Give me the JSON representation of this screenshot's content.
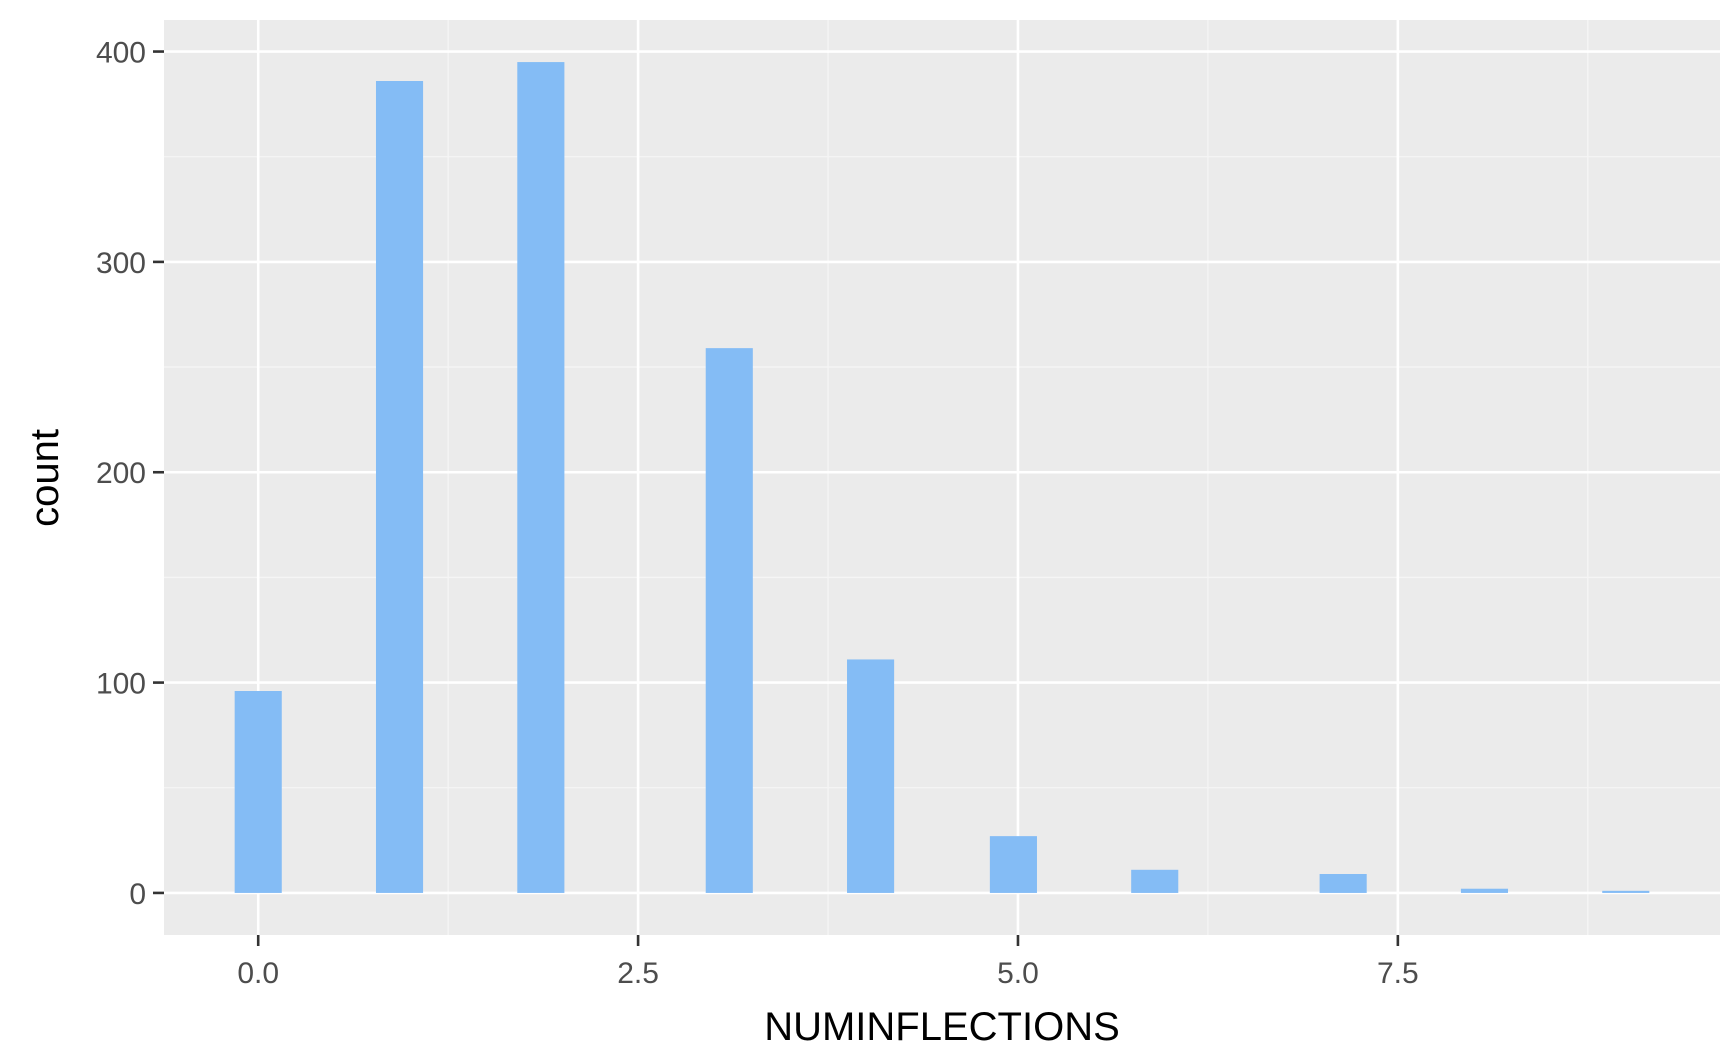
{
  "chart_data": {
    "type": "bar",
    "xlabel": "NUMINFLECTIONS",
    "ylabel": "count",
    "xlim": [
      -0.62,
      9.62
    ],
    "ylim": [
      -20,
      415
    ],
    "x_ticks": [
      0.0,
      2.5,
      5.0,
      7.5
    ],
    "x_tick_labels": [
      "0.0",
      "2.5",
      "5.0",
      "7.5"
    ],
    "y_ticks": [
      0,
      100,
      200,
      300,
      400
    ],
    "y_tick_labels": [
      "0",
      "100",
      "200",
      "300",
      "400"
    ],
    "bin_width": 0.31,
    "grid": true,
    "legend": "none",
    "x": [
      0,
      0.93,
      1.86,
      3.1,
      4.03,
      4.97,
      5.9,
      7.14,
      8.07,
      9
    ],
    "values": [
      96,
      386,
      395,
      259,
      111,
      27,
      11,
      9,
      2,
      1
    ]
  },
  "colors": {
    "panel_background": "#ebebeb",
    "grid_major": "#ffffff",
    "grid_minor": "#f5f5f5",
    "bar_fill": "#84bcf5",
    "axis_text": "#4d4d4d",
    "axis_title": "#000000"
  }
}
